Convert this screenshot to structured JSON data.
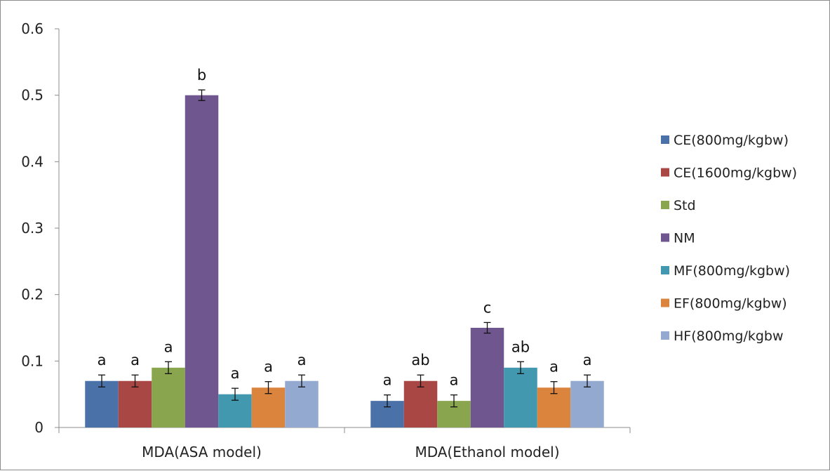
{
  "chart_data": {
    "type": "bar",
    "title": "",
    "xlabel": "",
    "ylabel": "",
    "ylim": [
      0,
      0.6
    ],
    "yticks": [
      "0",
      "0.1",
      "0.2",
      "0.3",
      "0.4",
      "0.5",
      "0.6"
    ],
    "grid": false,
    "legend_position": "right",
    "categories": [
      "MDA(ASA model)",
      "MDA(Ethanol model)"
    ],
    "series": [
      {
        "name": "CE(800mg/kgbw)",
        "color": "#4a72a8",
        "values": [
          0.07,
          0.04
        ],
        "errors": [
          0.009,
          0.009
        ],
        "labels": [
          "a",
          "a"
        ]
      },
      {
        "name": "CE(1600mg/kgbw)",
        "color": "#a84744",
        "values": [
          0.07,
          0.07
        ],
        "errors": [
          0.009,
          0.009
        ],
        "labels": [
          "a",
          "ab"
        ]
      },
      {
        "name": "Std",
        "color": "#89a54e",
        "values": [
          0.09,
          0.04
        ],
        "errors": [
          0.009,
          0.009
        ],
        "labels": [
          "a",
          "a"
        ]
      },
      {
        "name": "NM",
        "color": "#70568f",
        "values": [
          0.5,
          0.15
        ],
        "errors": [
          0.008,
          0.008
        ],
        "labels": [
          "b",
          "c"
        ]
      },
      {
        "name": "MF(800mg/kgbw)",
        "color": "#4198af",
        "values": [
          0.05,
          0.09
        ],
        "errors": [
          0.009,
          0.009
        ],
        "labels": [
          "a",
          "ab"
        ]
      },
      {
        "name": "EF(800mg/kgbw)",
        "color": "#db843d",
        "values": [
          0.06,
          0.06
        ],
        "errors": [
          0.009,
          0.009
        ],
        "labels": [
          "a",
          "a"
        ]
      },
      {
        "name": "HF(800mg/kgbw",
        "color": "#93a9cf",
        "values": [
          0.07,
          0.07
        ],
        "errors": [
          0.009,
          0.009
        ],
        "labels": [
          "a",
          "a"
        ]
      }
    ]
  }
}
